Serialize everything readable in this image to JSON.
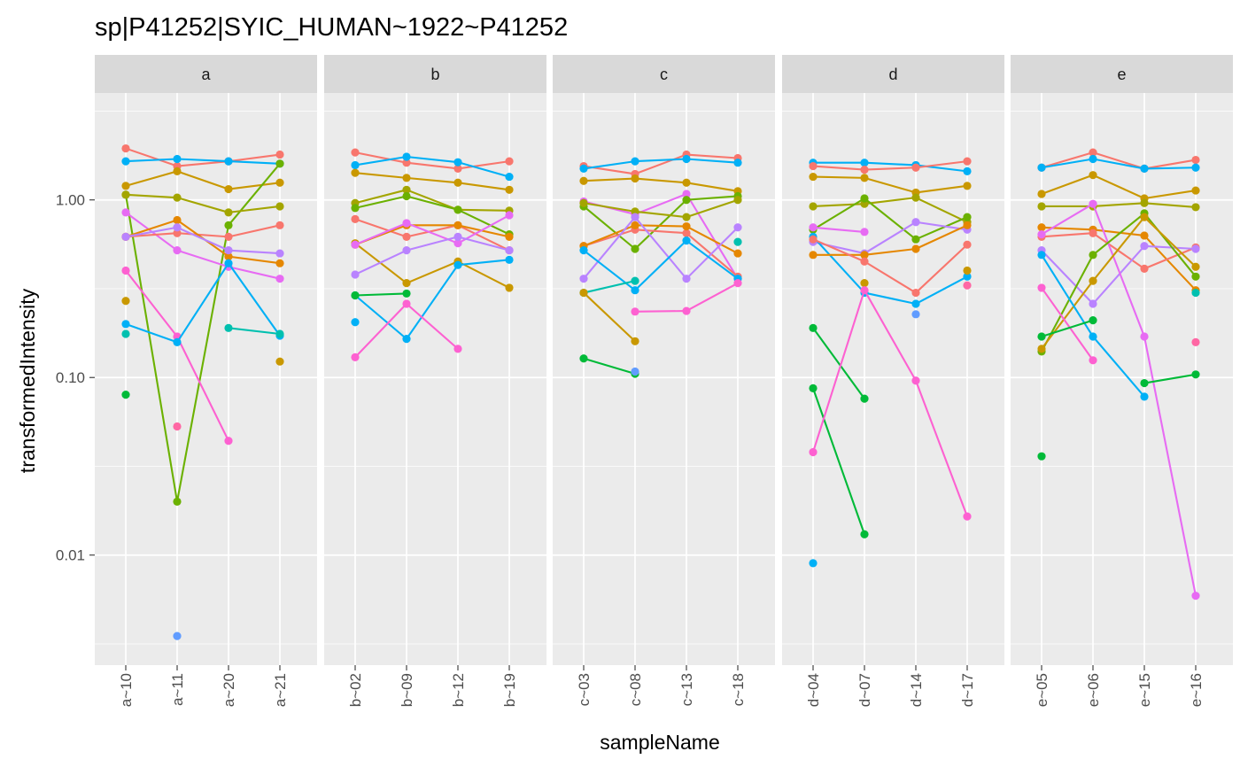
{
  "chart_data": {
    "type": "line",
    "title": "sp|P41252|SYIC_HUMAN~1922~P41252",
    "xlabel": "sampleName",
    "ylabel": "transformedIntensity",
    "y_scale": "log10",
    "y_ticks": [
      0.01,
      0.1,
      1.0
    ],
    "y_tick_labels": [
      "0.01",
      "0.10",
      "1.00"
    ],
    "ylim": [
      0.0024,
      4.0
    ],
    "grid": true,
    "legend": "none",
    "panel_background": "#ebebeb",
    "strip_background": "#d9d9d9",
    "colors": [
      "#f8766d",
      "#e58700",
      "#c99800",
      "#a3a500",
      "#6bb100",
      "#00ba38",
      "#00bf7d",
      "#00c0af",
      "#00bcd8",
      "#00b0f6",
      "#619cff",
      "#b983ff",
      "#e76bf3",
      "#fd61d1",
      "#ff67a4"
    ],
    "facets": [
      {
        "label": "a",
        "samples": [
          "a~10",
          "a~11",
          "a~20",
          "a~21"
        ],
        "series": [
          {
            "color": "#f8766d",
            "values": [
              1.95,
              1.55,
              1.65,
              1.8
            ]
          },
          {
            "color": "#00b0f6",
            "values": [
              1.65,
              1.7,
              1.65,
              1.6
            ]
          },
          {
            "color": "#c99800",
            "values": [
              1.2,
              1.45,
              1.15,
              1.25
            ]
          },
          {
            "color": "#6bb100",
            "values": [
              1.07,
              0.02,
              0.72,
              1.6
            ]
          },
          {
            "color": "#a3a500",
            "values": [
              1.07,
              1.03,
              0.85,
              0.92
            ]
          },
          {
            "color": "#e76bf3",
            "values": [
              0.85,
              0.52,
              0.42,
              0.36
            ]
          },
          {
            "color": "#f8766d",
            "values": [
              0.62,
              0.65,
              0.62,
              0.72
            ]
          },
          {
            "color": "#e58700",
            "values": [
              0.62,
              0.77,
              0.48,
              0.44
            ]
          },
          {
            "color": "#b983ff",
            "values": [
              0.62,
              0.7,
              0.52,
              0.5
            ]
          },
          {
            "color": "#fd61d1",
            "values": [
              0.4,
              0.17,
              0.044,
              null
            ]
          },
          {
            "color": "#c99800",
            "values": [
              0.27,
              null,
              null,
              0.123
            ]
          },
          {
            "color": "#00b0f6",
            "values": [
              0.2,
              0.158,
              0.44,
              0.172
            ]
          },
          {
            "color": "#00c0af",
            "values": [
              0.176,
              null,
              0.19,
              0.176
            ]
          },
          {
            "color": "#00ba38",
            "values": [
              0.08,
              null,
              null,
              null
            ]
          },
          {
            "color": "#ff67a4",
            "values": [
              null,
              0.053,
              null,
              null
            ]
          },
          {
            "color": "#619cff",
            "values": [
              null,
              0.0035,
              null,
              null
            ]
          }
        ]
      },
      {
        "label": "b",
        "samples": [
          "b~02",
          "b~09",
          "b~12",
          "b~19"
        ],
        "series": [
          {
            "color": "#f8766d",
            "values": [
              1.85,
              1.62,
              1.5,
              1.65
            ]
          },
          {
            "color": "#00b0f6",
            "values": [
              1.57,
              1.75,
              1.63,
              1.35
            ]
          },
          {
            "color": "#c99800",
            "values": [
              1.42,
              1.33,
              1.25,
              1.14
            ]
          },
          {
            "color": "#a3a500",
            "values": [
              0.96,
              1.14,
              0.88,
              0.87
            ]
          },
          {
            "color": "#6bb100",
            "values": [
              0.9,
              1.05,
              0.88,
              0.64
            ]
          },
          {
            "color": "#f8766d",
            "values": [
              0.78,
              0.62,
              0.72,
              0.52
            ]
          },
          {
            "color": "#e58700",
            "values": [
              0.56,
              0.72,
              0.72,
              0.62
            ]
          },
          {
            "color": "#c99800",
            "values": [
              0.57,
              0.34,
              0.45,
              0.32
            ]
          },
          {
            "color": "#e76bf3",
            "values": [
              0.56,
              0.74,
              0.57,
              0.82
            ]
          },
          {
            "color": "#b983ff",
            "values": [
              0.38,
              0.52,
              0.62,
              0.52
            ]
          },
          {
            "color": "#00b0f6",
            "values": [
              0.29,
              0.165,
              0.43,
              0.46
            ]
          },
          {
            "color": "#00ba38",
            "values": [
              0.29,
              0.297,
              null,
              null
            ]
          },
          {
            "color": "#00b0f6",
            "values": [
              0.205,
              null,
              null,
              null
            ]
          },
          {
            "color": "#fd61d1",
            "values": [
              0.13,
              0.26,
              0.145,
              null
            ]
          }
        ]
      },
      {
        "label": "c",
        "samples": [
          "c~03",
          "c~08",
          "c~13",
          "c~18"
        ],
        "series": [
          {
            "color": "#f8766d",
            "values": [
              1.55,
              1.4,
              1.8,
              1.72
            ]
          },
          {
            "color": "#00b0f6",
            "values": [
              1.5,
              1.65,
              1.7,
              1.62
            ]
          },
          {
            "color": "#c99800",
            "values": [
              1.28,
              1.32,
              1.25,
              1.12
            ]
          },
          {
            "color": "#e76bf3",
            "values": [
              0.98,
              0.83,
              1.08,
              0.36
            ]
          },
          {
            "color": "#6bb100",
            "values": [
              0.92,
              0.53,
              1.0,
              1.05
            ]
          },
          {
            "color": "#a3a500",
            "values": [
              0.96,
              0.86,
              0.8,
              1.0
            ]
          },
          {
            "color": "#f8766d",
            "values": [
              0.55,
              0.68,
              0.65,
              0.37
            ]
          },
          {
            "color": "#e58700",
            "values": [
              0.55,
              0.72,
              0.71,
              0.5
            ]
          },
          {
            "color": "#b983ff",
            "values": [
              0.36,
              0.8,
              0.36,
              0.7
            ]
          },
          {
            "color": "#00b0f6",
            "values": [
              0.52,
              0.31,
              0.59,
              0.36
            ]
          },
          {
            "color": "#00c0af",
            "values": [
              0.3,
              0.35,
              null,
              0.58
            ]
          },
          {
            "color": "#c99800",
            "values": [
              0.3,
              0.16,
              null,
              null
            ]
          },
          {
            "color": "#fd61d1",
            "values": [
              null,
              0.235,
              0.237,
              0.34
            ]
          },
          {
            "color": "#00ba38",
            "values": [
              0.128,
              0.105,
              null,
              null
            ]
          },
          {
            "color": "#619cff",
            "values": [
              null,
              0.108,
              null,
              null
            ]
          }
        ]
      },
      {
        "label": "d",
        "samples": [
          "d~04",
          "d~07",
          "d~14",
          "d~17"
        ],
        "series": [
          {
            "color": "#00b0f6",
            "values": [
              1.62,
              1.62,
              1.57,
              1.45
            ]
          },
          {
            "color": "#f8766d",
            "values": [
              1.55,
              1.48,
              1.52,
              1.65
            ]
          },
          {
            "color": "#c99800",
            "values": [
              1.35,
              1.33,
              1.1,
              1.2
            ]
          },
          {
            "color": "#a3a500",
            "values": [
              0.92,
              0.95,
              1.03,
              0.75
            ]
          },
          {
            "color": "#6bb100",
            "values": [
              0.68,
              1.02,
              0.6,
              0.8
            ]
          },
          {
            "color": "#e76bf3",
            "values": [
              0.7,
              0.66,
              null,
              null
            ]
          },
          {
            "color": "#b983ff",
            "values": [
              0.58,
              0.5,
              0.75,
              0.68
            ]
          },
          {
            "color": "#00b0f6",
            "values": [
              0.62,
              0.3,
              0.26,
              0.37
            ]
          },
          {
            "color": "#e58700",
            "values": [
              0.49,
              0.49,
              0.53,
              0.72
            ]
          },
          {
            "color": "#f8766d",
            "values": [
              0.6,
              0.45,
              0.3,
              0.56
            ]
          },
          {
            "color": "#c99800",
            "values": [
              null,
              0.34,
              null,
              0.4
            ]
          },
          {
            "color": "#ff67a4",
            "values": [
              null,
              null,
              null,
              0.33
            ]
          },
          {
            "color": "#619cff",
            "values": [
              null,
              null,
              0.227,
              null
            ]
          },
          {
            "color": "#00ba38",
            "values": [
              0.19,
              0.076,
              null,
              null
            ]
          },
          {
            "color": "#00ba38",
            "values": [
              0.087,
              0.0131,
              null,
              null
            ]
          },
          {
            "color": "#fd61d1",
            "values": [
              0.038,
              0.31,
              0.096,
              0.0165
            ]
          },
          {
            "color": "#00b0f6",
            "values": [
              0.009,
              null,
              null,
              null
            ]
          }
        ]
      },
      {
        "label": "e",
        "samples": [
          "e~05",
          "e~06",
          "e~15",
          "e~16"
        ],
        "series": [
          {
            "color": "#f8766d",
            "values": [
              1.52,
              1.85,
              1.5,
              1.68
            ]
          },
          {
            "color": "#00b0f6",
            "values": [
              1.52,
              1.7,
              1.5,
              1.52
            ]
          },
          {
            "color": "#c99800",
            "values": [
              1.08,
              1.38,
              1.02,
              1.13
            ]
          },
          {
            "color": "#a3a500",
            "values": [
              0.92,
              0.92,
              0.96,
              0.91
            ]
          },
          {
            "color": "#e58700",
            "values": [
              0.7,
              0.68,
              0.63,
              0.31
            ]
          },
          {
            "color": "#f8766d",
            "values": [
              0.62,
              0.65,
              0.41,
              0.54
            ]
          },
          {
            "color": "#b983ff",
            "values": [
              0.52,
              0.26,
              0.55,
              0.53
            ]
          },
          {
            "color": "#e76bf3",
            "values": [
              0.64,
              0.95,
              0.17,
              0.0059
            ]
          },
          {
            "color": "#6bb100",
            "values": [
              0.14,
              0.49,
              0.84,
              0.37
            ]
          },
          {
            "color": "#c99800",
            "values": [
              0.145,
              0.35,
              0.8,
              0.42
            ]
          },
          {
            "color": "#00b0f6",
            "values": [
              0.49,
              0.17,
              0.078,
              null
            ]
          },
          {
            "color": "#fd61d1",
            "values": [
              0.32,
              0.125,
              null,
              null
            ]
          },
          {
            "color": "#00ba38",
            "values": [
              0.17,
              0.21,
              null,
              null
            ]
          },
          {
            "color": "#00c0af",
            "values": [
              null,
              null,
              null,
              0.3
            ]
          },
          {
            "color": "#ff67a4",
            "values": [
              null,
              null,
              null,
              0.158
            ]
          },
          {
            "color": "#00ba38",
            "values": [
              0.036,
              null,
              0.093,
              0.104
            ]
          }
        ]
      }
    ]
  }
}
